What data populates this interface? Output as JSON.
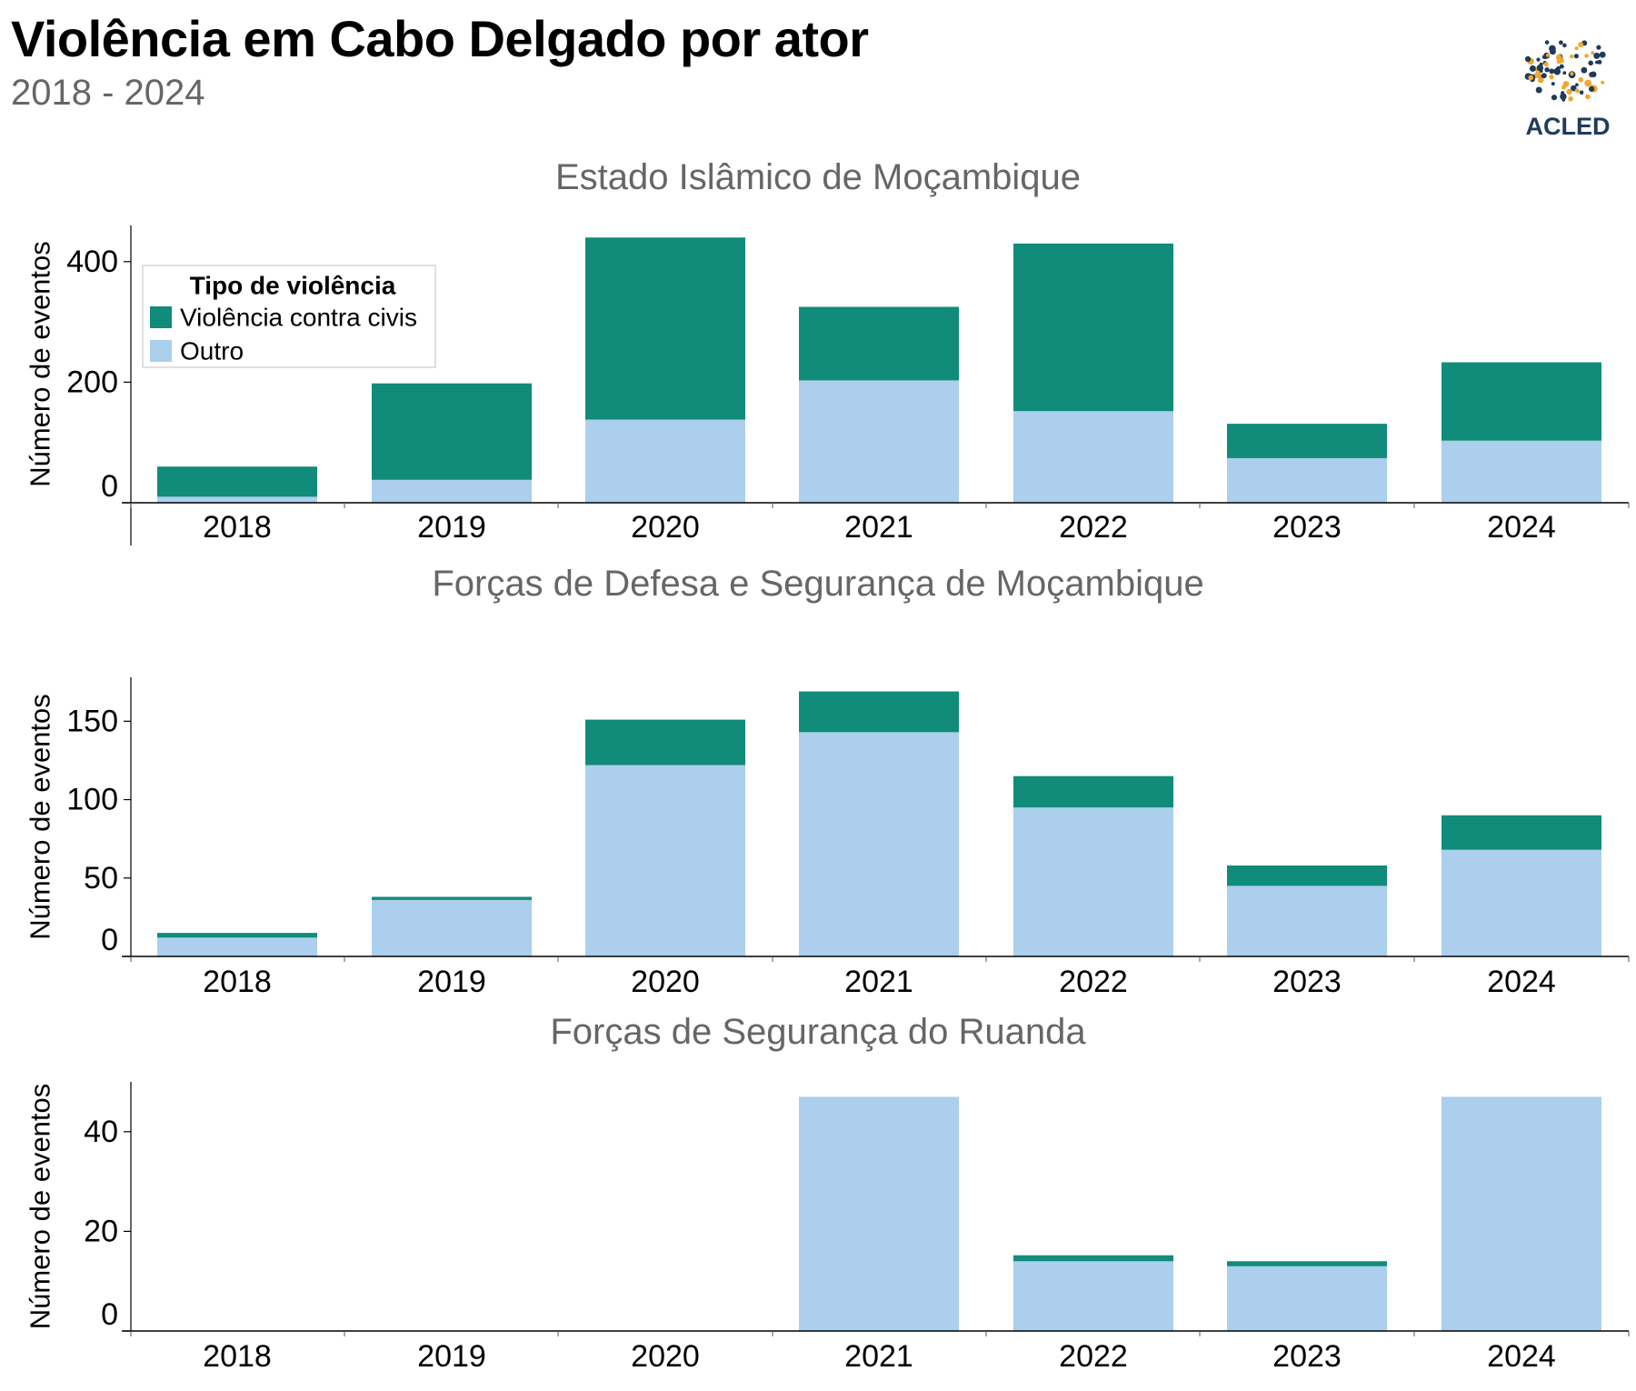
{
  "header": {
    "title": "Violência em Cabo Delgado por ator",
    "subtitle": "2018 - 2024",
    "logo_text": "ACLED"
  },
  "colors": {
    "civilians": "#118b7a",
    "other": "#abcfec",
    "axis": "#000000",
    "panel_title": "#666666",
    "legend_border": "#cccccc",
    "logo_navy": "#1f3b5a",
    "logo_orange": "#f0a830"
  },
  "legend": {
    "title": "Tipo de violência",
    "items": [
      {
        "label": "Violência contra civis",
        "color_key": "civilians"
      },
      {
        "label": "Outro",
        "color_key": "other"
      }
    ]
  },
  "chart_data": [
    {
      "type": "bar",
      "stacked": true,
      "title": "Estado Islâmico de Moçambique",
      "ylabel": "Número de eventos",
      "xlabel": "",
      "categories": [
        "2018",
        "2019",
        "2020",
        "2021",
        "2022",
        "2023",
        "2024"
      ],
      "series": [
        {
          "name": "Outro",
          "values": [
            10,
            38,
            138,
            203,
            152,
            74,
            103
          ]
        },
        {
          "name": "Violência contra civis",
          "values": [
            50,
            160,
            302,
            122,
            278,
            57,
            130
          ]
        }
      ],
      "ylim": [
        0,
        460
      ],
      "yticks": [
        0,
        200,
        400
      ]
    },
    {
      "type": "bar",
      "stacked": true,
      "title": "Forças de Defesa e Segurança de Moçambique",
      "ylabel": "Número de eventos",
      "xlabel": "",
      "categories": [
        "2018",
        "2019",
        "2020",
        "2021",
        "2022",
        "2023",
        "2024"
      ],
      "series": [
        {
          "name": "Outro",
          "values": [
            12,
            36,
            122,
            143,
            95,
            45,
            68
          ]
        },
        {
          "name": "Violência contra civis",
          "values": [
            3,
            2,
            29,
            26,
            20,
            13,
            22
          ]
        }
      ],
      "ylim": [
        0,
        178
      ],
      "yticks": [
        0,
        50,
        100,
        150
      ]
    },
    {
      "type": "bar",
      "stacked": true,
      "title": "Forças de Segurança do Ruanda",
      "ylabel": "Número de eventos",
      "xlabel": "",
      "categories": [
        "2018",
        "2019",
        "2020",
        "2021",
        "2022",
        "2023",
        "2024"
      ],
      "series": [
        {
          "name": "Outro",
          "values": [
            0,
            0,
            0,
            47,
            14,
            13,
            47
          ]
        },
        {
          "name": "Violência contra civis",
          "values": [
            0,
            0,
            0,
            0,
            1.2,
            1,
            0
          ]
        }
      ],
      "ylim": [
        0,
        50
      ],
      "yticks": [
        0,
        20,
        40
      ]
    }
  ]
}
